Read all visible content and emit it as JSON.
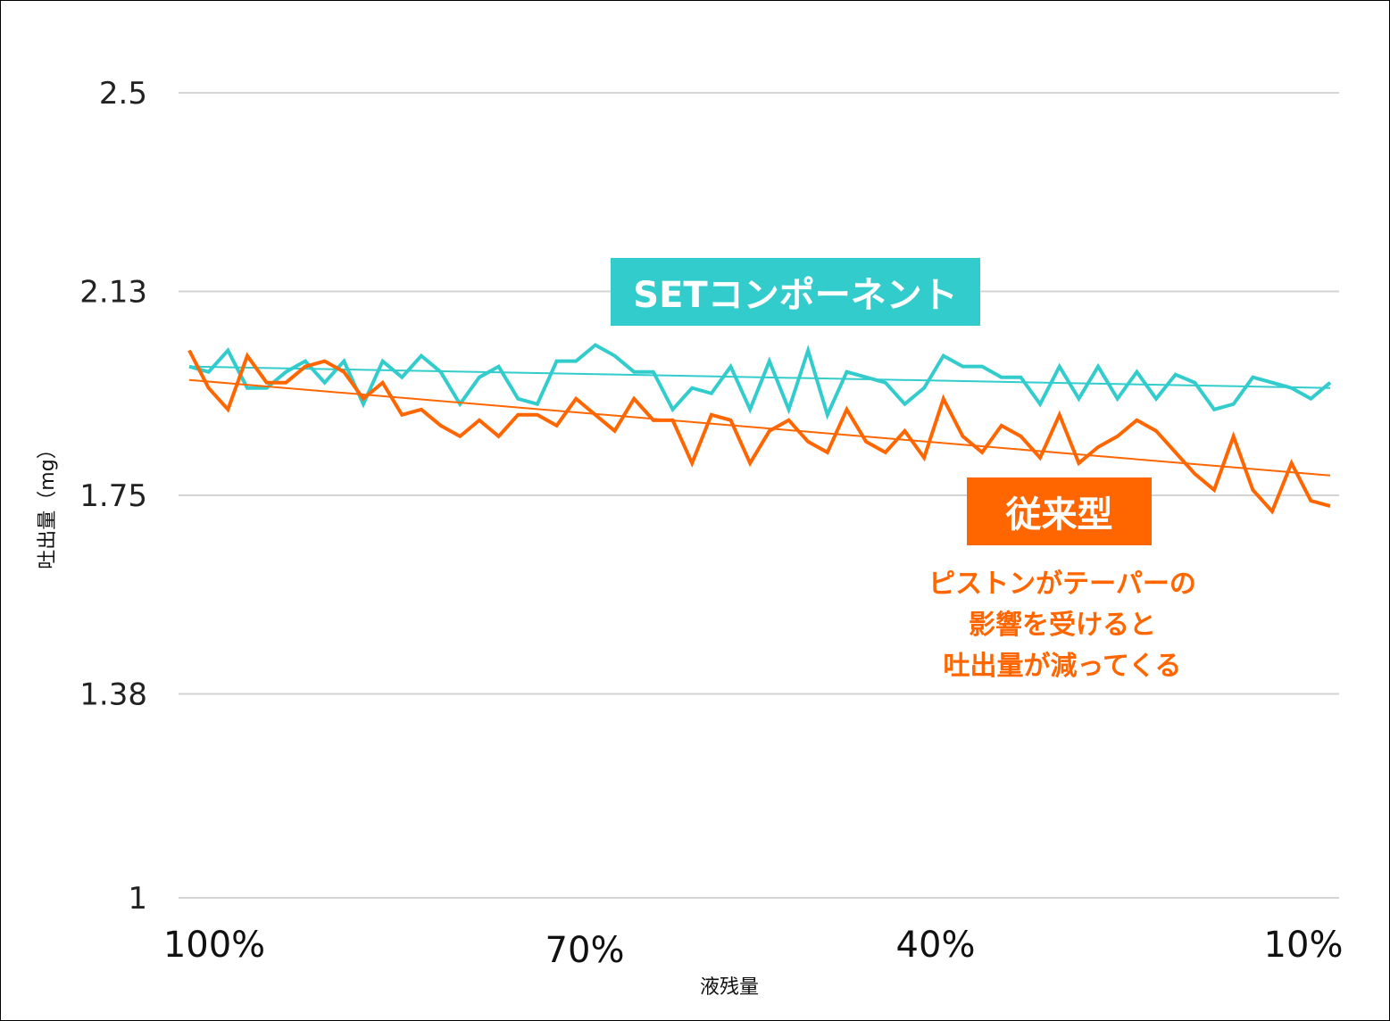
{
  "chart_data": {
    "type": "line",
    "ylabel": "吐出量（mg）",
    "xlabel": "液残量",
    "ylim": [
      1,
      2.5
    ],
    "yticks": [
      "2.5",
      "2.13",
      "1.75",
      "1.38",
      "1"
    ],
    "ytick_values": [
      2.5,
      2.13,
      1.75,
      1.38,
      1
    ],
    "xticks": [
      "100%",
      "70%",
      "40%",
      "10%"
    ],
    "grid": true,
    "series": [
      {
        "name": "SETコンポーネント",
        "color": "#33cccc",
        "values": [
          1.99,
          1.98,
          2.02,
          1.95,
          1.95,
          1.98,
          2.0,
          1.96,
          2.0,
          1.92,
          2.0,
          1.97,
          2.01,
          1.98,
          1.92,
          1.97,
          1.99,
          1.93,
          1.92,
          2.0,
          2.0,
          2.03,
          2.01,
          1.98,
          1.98,
          1.91,
          1.95,
          1.94,
          1.99,
          1.91,
          2.0,
          1.91,
          2.02,
          1.9,
          1.98,
          1.97,
          1.96,
          1.92,
          1.95,
          2.01,
          1.99,
          1.99,
          1.97,
          1.97,
          1.92,
          1.99,
          1.93,
          1.99,
          1.93,
          1.98,
          1.93,
          1.975,
          1.96,
          1.91,
          1.92,
          1.97,
          1.96,
          1.95,
          1.93,
          1.96
        ],
        "trend": [
          1.99,
          1.95
        ]
      },
      {
        "name": "従来型",
        "color": "#ff6600",
        "values": [
          2.02,
          1.95,
          1.91,
          2.01,
          1.96,
          1.96,
          1.99,
          2.0,
          1.98,
          1.93,
          1.96,
          1.9,
          1.91,
          1.88,
          1.86,
          1.89,
          1.86,
          1.9,
          1.9,
          1.88,
          1.93,
          1.9,
          1.87,
          1.93,
          1.89,
          1.89,
          1.81,
          1.9,
          1.89,
          1.81,
          1.87,
          1.89,
          1.85,
          1.83,
          1.91,
          1.85,
          1.83,
          1.87,
          1.82,
          1.93,
          1.86,
          1.83,
          1.88,
          1.86,
          1.82,
          1.9,
          1.81,
          1.84,
          1.86,
          1.89,
          1.87,
          1.83,
          1.79,
          1.76,
          1.86,
          1.76,
          1.72,
          1.81,
          1.74,
          1.73
        ],
        "trend": [
          1.965,
          1.787
        ]
      }
    ],
    "annotations": {
      "set_label": "SETコンポーネント",
      "old_label": "従来型",
      "note": [
        "ピストンがテーパーの",
        "影響を受けると",
        "吐出量が減ってくる"
      ]
    }
  }
}
